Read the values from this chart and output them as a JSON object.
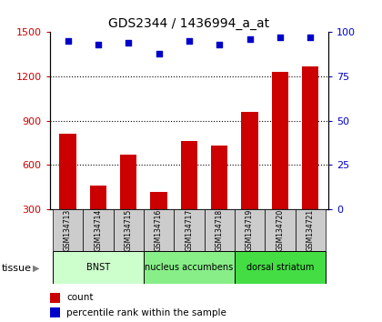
{
  "title": "GDS2344 / 1436994_a_at",
  "samples": [
    "GSM134713",
    "GSM134714",
    "GSM134715",
    "GSM134716",
    "GSM134717",
    "GSM134718",
    "GSM134719",
    "GSM134720",
    "GSM134721"
  ],
  "counts": [
    810,
    460,
    670,
    420,
    760,
    730,
    960,
    1230,
    1270
  ],
  "percentiles": [
    95,
    93,
    94,
    88,
    95,
    93,
    96,
    97,
    97
  ],
  "ylim_left": [
    300,
    1500
  ],
  "ylim_right": [
    0,
    100
  ],
  "yticks_left": [
    300,
    600,
    900,
    1200,
    1500
  ],
  "yticks_right": [
    0,
    25,
    50,
    75,
    100
  ],
  "bar_color": "#cc0000",
  "dot_color": "#0000cc",
  "groups": [
    {
      "label": "BNST",
      "start": 0,
      "end": 3,
      "color": "#ccffcc"
    },
    {
      "label": "nucleus accumbens",
      "start": 3,
      "end": 6,
      "color": "#88ee88"
    },
    {
      "label": "dorsal striatum",
      "start": 6,
      "end": 9,
      "color": "#44dd44"
    }
  ],
  "tissue_label": "tissue",
  "legend_count_label": "count",
  "legend_pct_label": "percentile rank within the sample",
  "grid_color": "#000000",
  "bg_plot": "#ffffff",
  "bg_sample_box": "#cccccc",
  "tick_label_color_left": "#cc0000",
  "tick_label_color_right": "#0000cc"
}
